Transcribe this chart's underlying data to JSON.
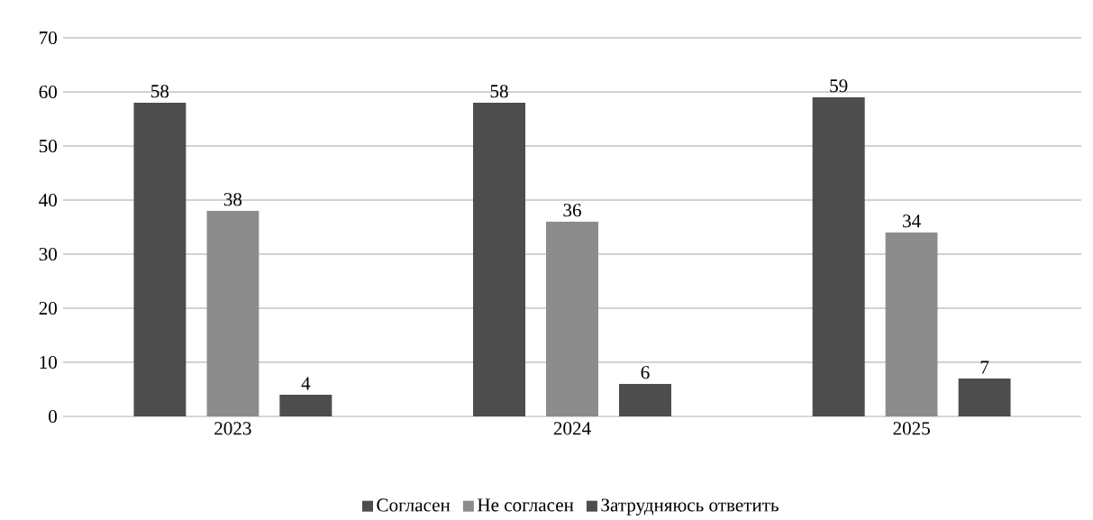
{
  "chart_data": {
    "type": "bar",
    "categories": [
      "2023",
      "2024",
      "2025"
    ],
    "series": [
      {
        "name": "Согласен",
        "color": "#4d4d4d",
        "values": [
          58,
          58,
          59
        ]
      },
      {
        "name": "Не согласен",
        "color": "#8c8c8c",
        "values": [
          38,
          36,
          34
        ]
      },
      {
        "name": "Затрудняюсь ответить",
        "color": "#4d4d4d",
        "values": [
          4,
          6,
          7
        ]
      }
    ],
    "ylim": [
      0,
      70
    ],
    "yticks": [
      0,
      10,
      20,
      30,
      40,
      50,
      60,
      70
    ],
    "grid": "y",
    "legend": "bottom",
    "data_labels": true
  }
}
